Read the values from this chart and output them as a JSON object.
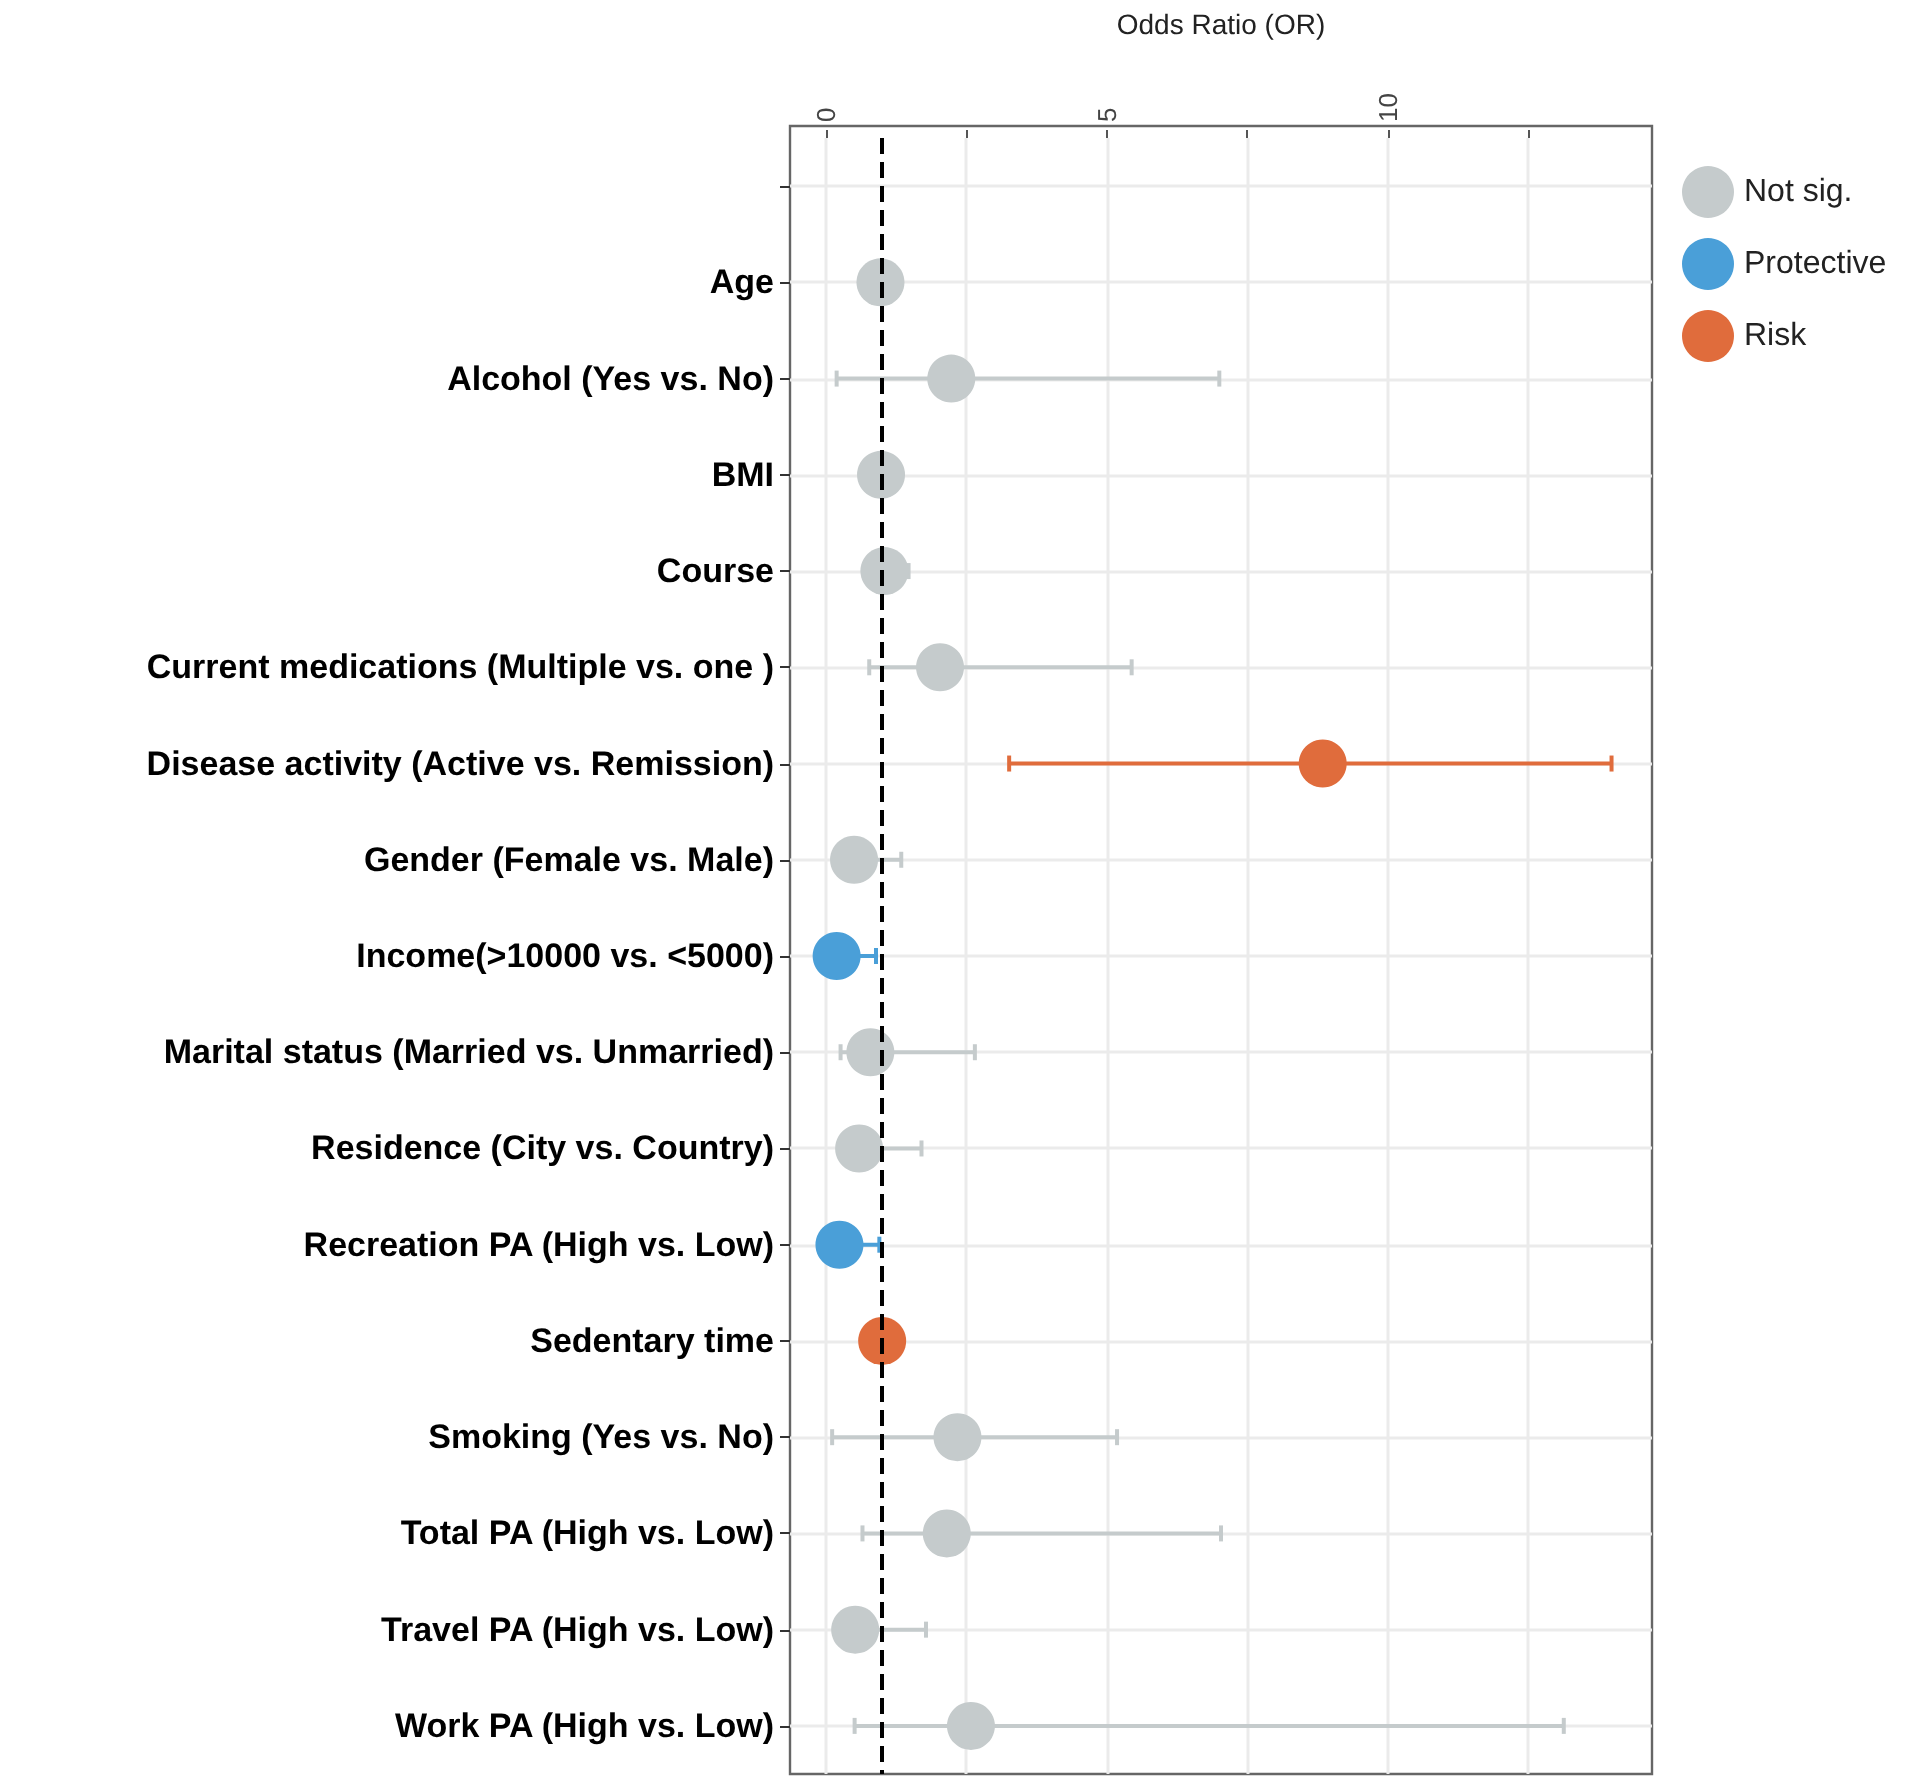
{
  "chart_data": {
    "type": "scatter",
    "orientation": "horizontal",
    "xlabel": "Odds Ratio (OR)",
    "categories": [
      null,
      "Age",
      "Alcohol (Yes vs. No)",
      "BMI",
      "Course",
      "Current medications (Multiple vs. one )",
      "Disease activity (Active vs. Remission)",
      "Gender (Female vs. Male)",
      "Income(>10000 vs. <5000)",
      "Marital status (Married vs. Unmarried)",
      "Residence (City vs. Country)",
      "Recreation PA (High vs. Low)",
      "Sedentary time",
      "Smoking (Yes vs. No)",
      "Total PA (High vs. Low)",
      "Travel PA (High vs. Low)",
      "Work PA (High vs. Low)"
    ],
    "series": [
      {
        "name": "Not sig.",
        "color": "#c5cbcc",
        "values": [
          null,
          0.97,
          2.23,
          0.98,
          1.04,
          2.03,
          null,
          0.5,
          null,
          0.79,
          0.59,
          null,
          null,
          2.34,
          2.15,
          0.52,
          2.58
        ],
        "errors": [
          null,
          null,
          [
            0.19,
            7.0
          ],
          null,
          [
            1.04,
            1.47
          ],
          [
            0.77,
            5.44
          ],
          null,
          [
            0.5,
            1.34
          ],
          null,
          [
            0.26,
            2.65
          ],
          [
            0.59,
            1.7
          ],
          null,
          null,
          [
            0.11,
            5.18
          ],
          [
            0.65,
            7.03
          ],
          [
            0.52,
            1.78
          ],
          [
            0.51,
            13.13
          ]
        ]
      },
      {
        "name": "Protective",
        "color": "#4a9fd8",
        "values": [
          null,
          null,
          null,
          null,
          null,
          null,
          null,
          null,
          0.19,
          null,
          null,
          0.24,
          null,
          null,
          null,
          null,
          null
        ],
        "errors": [
          null,
          null,
          null,
          null,
          null,
          null,
          null,
          null,
          [
            0.19,
            0.89
          ],
          null,
          null,
          [
            0.24,
            0.95
          ],
          null,
          null,
          null,
          null,
          null
        ]
      },
      {
        "name": "Risk",
        "color": "#e06c3c",
        "values": [
          null,
          null,
          null,
          null,
          null,
          null,
          8.84,
          null,
          null,
          null,
          null,
          null,
          1.0,
          null,
          null,
          null,
          null
        ],
        "errors": [
          null,
          null,
          null,
          null,
          null,
          null,
          [
            3.26,
            13.98
          ],
          null,
          null,
          null,
          null,
          null,
          null,
          null,
          null,
          null,
          null
        ]
      }
    ],
    "xlim": [
      -0.64,
      14.7
    ],
    "xticks": [
      0,
      {
        "value": 2.5,
        "label": null
      },
      5,
      {
        "value": 7.5,
        "label": null
      },
      10,
      {
        "value": 12.5,
        "label": null
      }
    ],
    "ref_lines": [
      {
        "axis": "x",
        "value": 1,
        "color": "#000000",
        "line_style": "dashed"
      }
    ],
    "grid": true,
    "legend": "right",
    "marker": "circle"
  }
}
